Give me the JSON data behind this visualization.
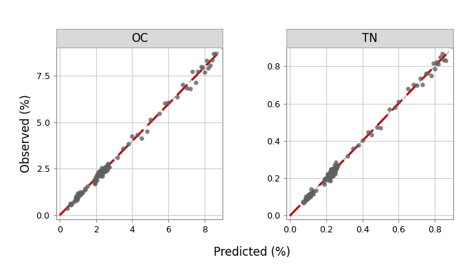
{
  "panel_titles": [
    "OC",
    "TN"
  ],
  "xlabel": "Predicted (%)",
  "ylabel": "Observed (%)",
  "oc_xlim": [
    -0.2,
    9.0
  ],
  "oc_ylim": [
    -0.2,
    9.0
  ],
  "tn_xlim": [
    -0.02,
    0.9
  ],
  "tn_ylim": [
    -0.02,
    0.9
  ],
  "oc_xticks": [
    0,
    2,
    4,
    6,
    8
  ],
  "oc_yticks": [
    0.0,
    2.5,
    5.0,
    7.5
  ],
  "tn_xticks": [
    0.0,
    0.2,
    0.4,
    0.6,
    0.8
  ],
  "tn_yticks": [
    0.0,
    0.2,
    0.4,
    0.6,
    0.8
  ],
  "dot_color": "#606060",
  "dot_size": 22,
  "dot_alpha": 0.8,
  "fit_line_color": "#CC0000",
  "identity_line_color": "#999999",
  "strip_bg": "#d9d9d9",
  "strip_border": "#aaaaaa",
  "plot_bg": "#ffffff",
  "fig_bg": "#ffffff",
  "grid_color": "#cccccc",
  "title_fontsize": 12,
  "label_fontsize": 12,
  "tick_fontsize": 9,
  "spine_color": "#888888"
}
